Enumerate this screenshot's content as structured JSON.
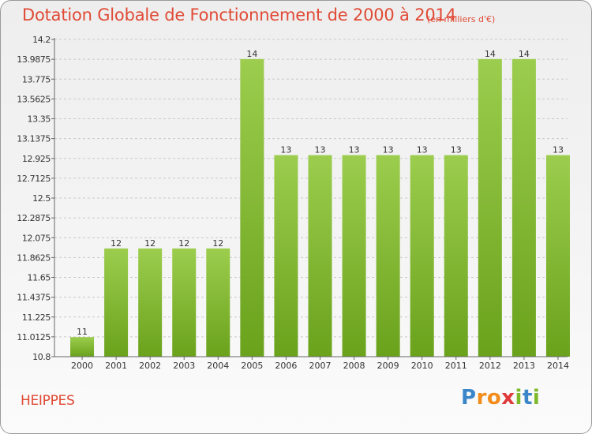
{
  "header": {
    "title": "Dotation Globale de Fonctionnement de 2000 à 2014",
    "unit": "(en milliers d'€)"
  },
  "footer": {
    "commune": "HEIPPES",
    "logo": "Proxiti"
  },
  "colors": {
    "title": "#e04a35",
    "bar_light": "#9ccd4e",
    "bar_dark": "#6aa21c",
    "axis": "#666666",
    "grid": "#c8c8c8"
  },
  "chart_data": {
    "type": "bar",
    "title": "Dotation Globale de Fonctionnement de 2000 à 2014",
    "xlabel": "",
    "ylabel": "",
    "categories": [
      "2000",
      "2001",
      "2002",
      "2003",
      "2004",
      "2005",
      "2006",
      "2007",
      "2008",
      "2009",
      "2010",
      "2011",
      "2012",
      "2013",
      "2014"
    ],
    "values": [
      11.01,
      11.96,
      11.96,
      11.96,
      11.96,
      13.99,
      12.96,
      12.96,
      12.96,
      12.96,
      12.96,
      12.96,
      13.99,
      13.99,
      12.96
    ],
    "data_labels": [
      "11",
      "12",
      "12",
      "12",
      "12",
      "14",
      "13",
      "13",
      "13",
      "13",
      "13",
      "13",
      "14",
      "14",
      "13"
    ],
    "ylim": [
      10.8,
      14.2
    ],
    "yticks": [
      10.8,
      11.0125,
      11.225,
      11.4375,
      11.65,
      11.8625,
      12.075,
      12.2875,
      12.5,
      12.7125,
      12.925,
      13.1375,
      13.35,
      13.5625,
      13.775,
      13.9875,
      14.2
    ],
    "ytick_labels": [
      "10.8",
      "11.0125",
      "11.225",
      "11.4375",
      "11.65",
      "11.8625",
      "12.075",
      "12.2875",
      "12.5",
      "12.7125",
      "12.925",
      "13.1375",
      "13.35",
      "13.5625",
      "13.775",
      "13.9875",
      "14.2"
    ],
    "grid": true
  }
}
